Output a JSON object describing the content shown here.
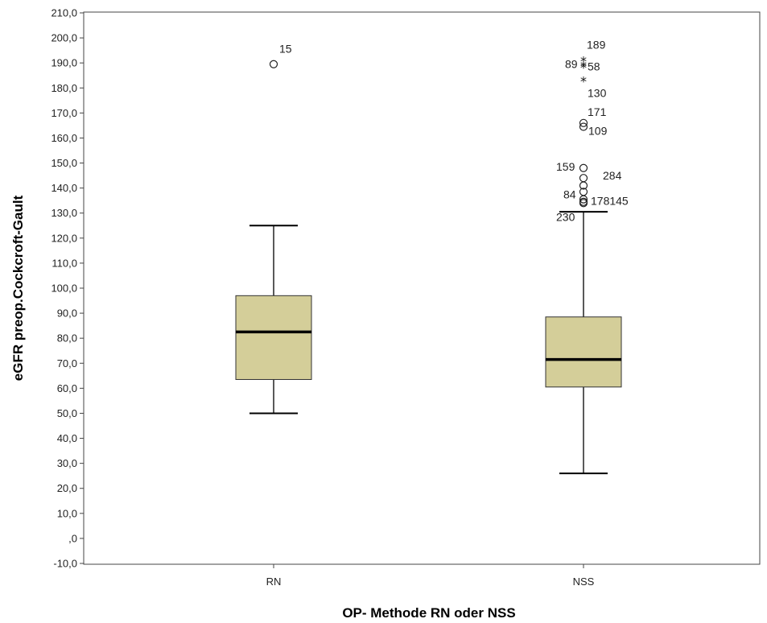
{
  "chart_data": {
    "type": "boxplot",
    "xlabel": "OP- Methode RN oder NSS",
    "ylabel": "eGFR preop.Cockcroft-Gault",
    "ylim": [
      -10,
      210
    ],
    "yticks": [
      -10,
      0,
      10,
      20,
      30,
      40,
      50,
      60,
      70,
      80,
      90,
      100,
      110,
      120,
      130,
      140,
      150,
      160,
      170,
      180,
      190,
      200,
      210
    ],
    "ytick_labels": [
      "-10,0",
      ",0",
      "10,0",
      "20,0",
      "30,0",
      "40,0",
      "50,0",
      "60,0",
      "70,0",
      "80,0",
      "90,0",
      "100,0",
      "110,0",
      "120,0",
      "130,0",
      "140,0",
      "150,0",
      "160,0",
      "170,0",
      "180,0",
      "190,0",
      "200,0",
      "210,0"
    ],
    "grid": false,
    "box_color": "#d4ce99",
    "categories": [
      "RN",
      "NSS"
    ],
    "boxes": [
      {
        "category": "RN",
        "whisker_low": 50.0,
        "q1": 63.5,
        "median": 82.5,
        "q3": 97.0,
        "whisker_high": 125.0,
        "outliers": [
          {
            "value": 189.5,
            "kind": "circle",
            "label": "15"
          }
        ]
      },
      {
        "category": "NSS",
        "whisker_low": 26.0,
        "q1": 60.5,
        "median": 71.5,
        "q3": 88.5,
        "whisker_high": 130.5,
        "outliers": [
          {
            "value": 191.5,
            "kind": "star",
            "label": "189"
          },
          {
            "value": 189.5,
            "kind": "star",
            "label": "89"
          },
          {
            "value": 189.0,
            "kind": "star",
            "label": "58"
          },
          {
            "value": 183.5,
            "kind": "star",
            "label": "130"
          },
          {
            "value": 166.0,
            "kind": "circle",
            "label": "171"
          },
          {
            "value": 164.5,
            "kind": "circle",
            "label": "109"
          },
          {
            "value": 148.0,
            "kind": "circle",
            "label": "159"
          },
          {
            "value": 144.0,
            "kind": "circle",
            "label": "284"
          },
          {
            "value": 141.0,
            "kind": "circle",
            "label": ""
          },
          {
            "value": 138.5,
            "kind": "circle",
            "label": ""
          },
          {
            "value": 135.5,
            "kind": "circle",
            "label": "84"
          },
          {
            "value": 134.5,
            "kind": "circle",
            "label": "178145"
          },
          {
            "value": 134.0,
            "kind": "circle",
            "label": "230"
          }
        ]
      }
    ]
  }
}
